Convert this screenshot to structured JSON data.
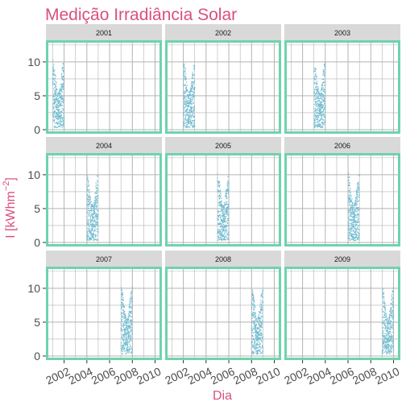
{
  "chart_data": {
    "type": "scatter",
    "title": "Medição Irradiância Solar",
    "xlabel": "Dia",
    "ylabel": "I  [kWhm⁻²]",
    "ylabel_base": "I  [kWhm",
    "ylabel_sup": "−2",
    "ylabel_close": "]",
    "xlim": [
      2000.4,
      2010.6
    ],
    "ylim": [
      -0.6,
      13.2
    ],
    "x_ticks": [
      2002,
      2004,
      2006,
      2008,
      2010
    ],
    "x_tick_labels": [
      "2002",
      "2004",
      "2006",
      "2008",
      "2010"
    ],
    "y_ticks": [
      0,
      5,
      10
    ],
    "y_tick_labels": [
      "0",
      "5",
      "10"
    ],
    "grid": true,
    "facets": [
      {
        "label": "2001",
        "x_range": [
          2001.0,
          2002.0
        ]
      },
      {
        "label": "2002",
        "x_range": [
          2002.0,
          2003.0
        ]
      },
      {
        "label": "2003",
        "x_range": [
          2003.0,
          2004.0
        ]
      },
      {
        "label": "2004",
        "x_range": [
          2004.0,
          2005.0
        ]
      },
      {
        "label": "2005",
        "x_range": [
          2005.0,
          2006.0
        ]
      },
      {
        "label": "2006",
        "x_range": [
          2006.0,
          2007.0
        ]
      },
      {
        "label": "2007",
        "x_range": [
          2007.0,
          2008.0
        ]
      },
      {
        "label": "2008",
        "x_range": [
          2008.0,
          2009.0
        ]
      },
      {
        "label": "2009",
        "x_range": [
          2009.0,
          2010.0
        ]
      }
    ],
    "colors": {
      "title": "#d94f7f",
      "axis_title": "#d94f7f",
      "points": "#74bdd1",
      "panel_border": "#6fd3ad",
      "strip_bg": "#d9d9d9",
      "grid": "#b3b3b3",
      "tick_text": "#4d4d4d"
    }
  }
}
